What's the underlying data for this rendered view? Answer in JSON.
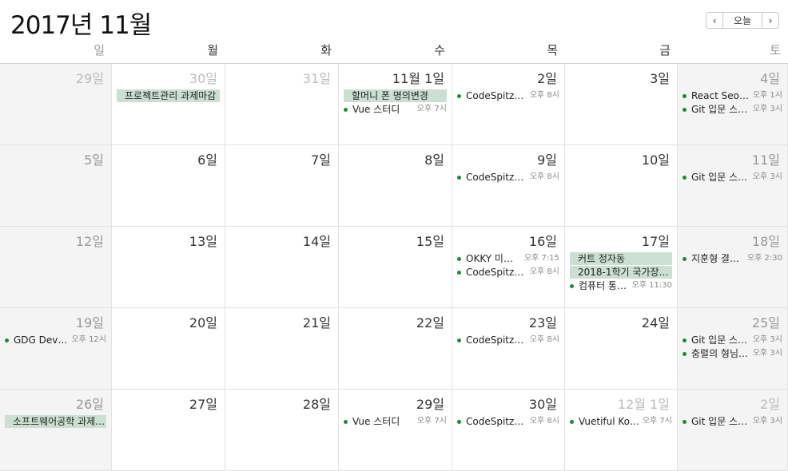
{
  "header": {
    "title": "2017년 11월",
    "prev": "‹",
    "today": "오늘",
    "next": "›"
  },
  "weekdays": [
    "일",
    "월",
    "화",
    "수",
    "목",
    "금",
    "토"
  ],
  "colors": {
    "event_bar": "#cbe0d2",
    "event_dot": "#1a8a34",
    "weekend_bg": "#f4f4f4"
  },
  "weeks": [
    {
      "days": [
        {
          "label": "29일",
          "other": true,
          "events": []
        },
        {
          "label": "30일",
          "other": true,
          "events": [
            {
              "type": "bar",
              "title": "프로젝트관리 과제마감"
            }
          ]
        },
        {
          "label": "31일",
          "other": true,
          "events": []
        },
        {
          "label": "11월 1일",
          "events": [
            {
              "type": "bar",
              "title": "할머니 폰 명의변경"
            },
            {
              "type": "dot",
              "title": "Vue 스터디",
              "time": "오후 7시"
            }
          ]
        },
        {
          "label": "2일",
          "events": [
            {
              "type": "dot",
              "title": "CodeSpitz…",
              "time": "오후 8시"
            }
          ]
        },
        {
          "label": "3일",
          "events": []
        },
        {
          "label": "4일",
          "events": [
            {
              "type": "dot",
              "title": "React Seo…",
              "time": "오후 1시"
            },
            {
              "type": "dot",
              "title": "Git 입문 스…",
              "time": "오후 3시"
            }
          ]
        }
      ]
    },
    {
      "days": [
        {
          "label": "5일",
          "events": []
        },
        {
          "label": "6일",
          "events": []
        },
        {
          "label": "7일",
          "events": []
        },
        {
          "label": "8일",
          "events": []
        },
        {
          "label": "9일",
          "events": [
            {
              "type": "dot",
              "title": "CodeSpitz…",
              "time": "오후 8시"
            }
          ]
        },
        {
          "label": "10일",
          "events": []
        },
        {
          "label": "11일",
          "events": [
            {
              "type": "dot",
              "title": "Git 입문 스…",
              "time": "오후 3시"
            }
          ]
        }
      ]
    },
    {
      "days": [
        {
          "label": "12일",
          "events": []
        },
        {
          "label": "13일",
          "events": []
        },
        {
          "label": "14일",
          "events": []
        },
        {
          "label": "15일",
          "events": []
        },
        {
          "label": "16일",
          "events": [
            {
              "type": "dot",
              "title": "OKKY 미…",
              "time": "오후 7:15"
            },
            {
              "type": "dot",
              "title": "CodeSpitz…",
              "time": "오후 8시"
            }
          ]
        },
        {
          "label": "17일",
          "events": [
            {
              "type": "bar",
              "title": "커트 정자동"
            },
            {
              "type": "bar",
              "title": "2018-1학기 국가장…"
            },
            {
              "type": "dot",
              "title": "컴퓨터 통…",
              "time": "오후 11:30"
            }
          ]
        },
        {
          "label": "18일",
          "events": [
            {
              "type": "dot",
              "title": "지훈형 결…",
              "time": "오후 2:30"
            }
          ]
        }
      ]
    },
    {
      "days": [
        {
          "label": "19일",
          "events": [
            {
              "type": "dot",
              "title": "GDG Dev…",
              "time": "오후 12시"
            }
          ]
        },
        {
          "label": "20일",
          "events": []
        },
        {
          "label": "21일",
          "events": []
        },
        {
          "label": "22일",
          "events": []
        },
        {
          "label": "23일",
          "events": [
            {
              "type": "dot",
              "title": "CodeSpitz…",
              "time": "오후 8시"
            }
          ]
        },
        {
          "label": "24일",
          "events": []
        },
        {
          "label": "25일",
          "events": [
            {
              "type": "dot",
              "title": "Git 입문 스…",
              "time": "오후 3시"
            },
            {
              "type": "dot",
              "title": "충렬의 형님…",
              "time": "오후 3시"
            }
          ]
        }
      ]
    },
    {
      "days": [
        {
          "label": "26일",
          "events": [
            {
              "type": "bar",
              "title": "소프트웨어공학 과제…"
            }
          ]
        },
        {
          "label": "27일",
          "events": []
        },
        {
          "label": "28일",
          "events": []
        },
        {
          "label": "29일",
          "events": [
            {
              "type": "dot",
              "title": "Vue 스터디",
              "time": "오후 7시"
            }
          ]
        },
        {
          "label": "30일",
          "events": [
            {
              "type": "dot",
              "title": "CodeSpitz…",
              "time": "오후 8시"
            }
          ]
        },
        {
          "label": "12월 1일",
          "other": true,
          "events": [
            {
              "type": "dot",
              "title": "Vuetiful Ko…",
              "time": "오후 7시"
            }
          ]
        },
        {
          "label": "2일",
          "other": true,
          "events": [
            {
              "type": "dot",
              "title": "Git 입문 스…",
              "time": "오후 3시"
            }
          ]
        }
      ]
    }
  ]
}
